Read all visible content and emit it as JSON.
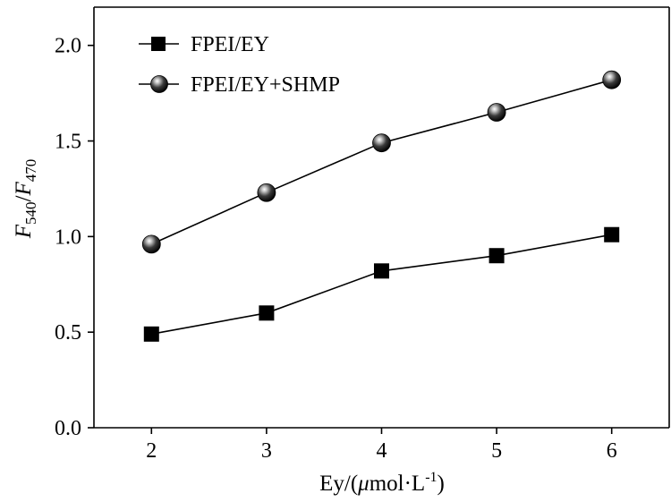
{
  "chart_data": {
    "type": "line",
    "x": [
      2,
      3,
      4,
      5,
      6
    ],
    "series": [
      {
        "name": "FPEI/EY",
        "marker": "square",
        "values": [
          0.49,
          0.6,
          0.82,
          0.9,
          1.01
        ]
      },
      {
        "name": "FPEI/EY+SHMP",
        "marker": "sphere",
        "values": [
          0.96,
          1.23,
          1.49,
          1.65,
          1.82
        ]
      }
    ],
    "xlim": [
      1.5,
      6.5
    ],
    "ylim": [
      0.0,
      2.2
    ],
    "xticks": [
      2,
      3,
      4,
      5,
      6
    ],
    "yticks": [
      0.0,
      0.5,
      1.0,
      1.5,
      2.0
    ],
    "xtick_labels": [
      "2",
      "3",
      "4",
      "5",
      "6"
    ],
    "ytick_labels": [
      "0.0",
      "0.5",
      "1.0",
      "1.5",
      "2.0"
    ],
    "xlabel": {
      "pre": "Ey/(",
      "mu": "μ",
      "mid": "mol·L",
      "sup": "-1",
      "post": ")"
    },
    "ylabel": {
      "f1": "F",
      "s1": "540",
      "slash": "/",
      "f2": "F",
      "s2": "470"
    },
    "grid": false,
    "legend_position": "top-left",
    "colors": {
      "line": "#000000",
      "marker": "#000000",
      "background": "#ffffff"
    }
  }
}
